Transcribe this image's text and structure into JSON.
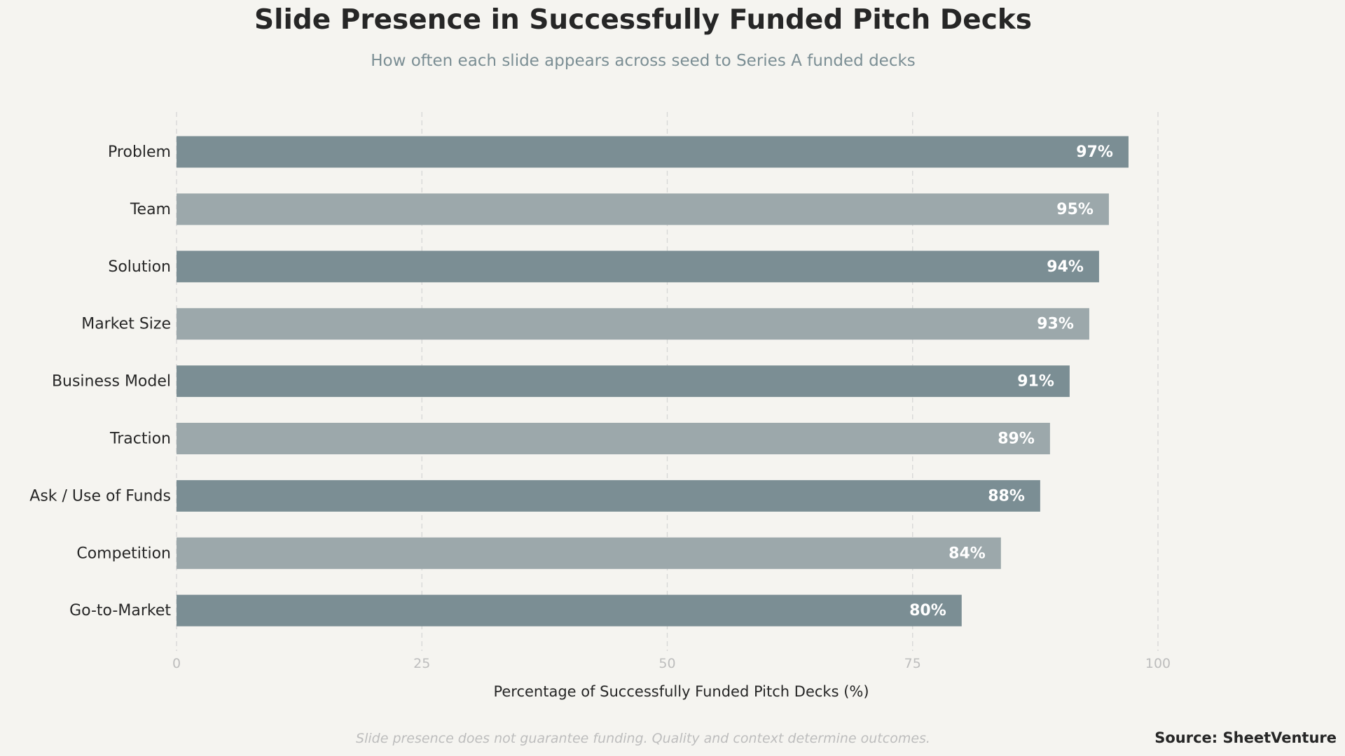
{
  "chart_data": {
    "type": "bar",
    "orientation": "horizontal",
    "title": "Slide Presence in Successfully Funded Pitch Decks",
    "subtitle": "How often each slide appears across seed to Series A funded decks",
    "xlabel": "Percentage of Successfully Funded Pitch Decks (%)",
    "ylabel": "",
    "xlim": [
      0,
      100
    ],
    "xticks": [
      "0",
      "25",
      "50",
      "75",
      "100"
    ],
    "grid": "vertical dashed",
    "categories": [
      "Problem",
      "Team",
      "Solution",
      "Market Size",
      "Business Model",
      "Traction",
      "Ask / Use of Funds",
      "Competition",
      "Go-to-Market"
    ],
    "values": [
      97,
      95,
      94,
      93,
      91,
      89,
      88,
      84,
      80
    ],
    "data_labels": [
      "97%",
      "95%",
      "94%",
      "93%",
      "91%",
      "89%",
      "88%",
      "84%",
      "80%"
    ],
    "colors": [
      "#7b8e94",
      "#9ca8ab"
    ],
    "footnote": "Slide presence does not guarantee funding. Quality and context determine outcomes.",
    "source": "Source: SheetVenture"
  }
}
